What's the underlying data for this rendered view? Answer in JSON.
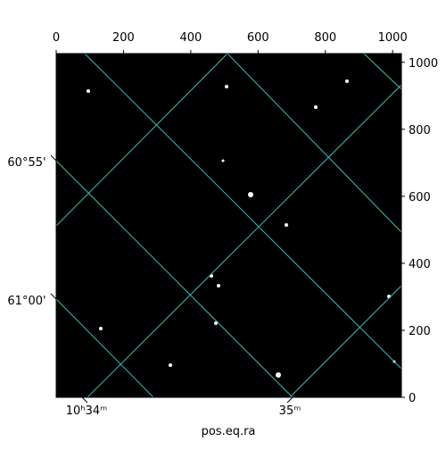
{
  "chart_data": {
    "type": "image",
    "xlabel": "pos.eq.ra",
    "xlim": [
      0,
      1026
    ],
    "ylim": [
      0,
      1026
    ],
    "xticks": [
      0,
      200,
      400,
      600,
      800,
      1000
    ],
    "yticks": [
      0,
      200,
      400,
      600,
      800,
      1000
    ],
    "ra_ticks": [
      "10ʰ34ᵐ",
      "35ᵐ"
    ],
    "dec_ticks": [
      "60°55'",
      "61°00'"
    ]
  }
}
